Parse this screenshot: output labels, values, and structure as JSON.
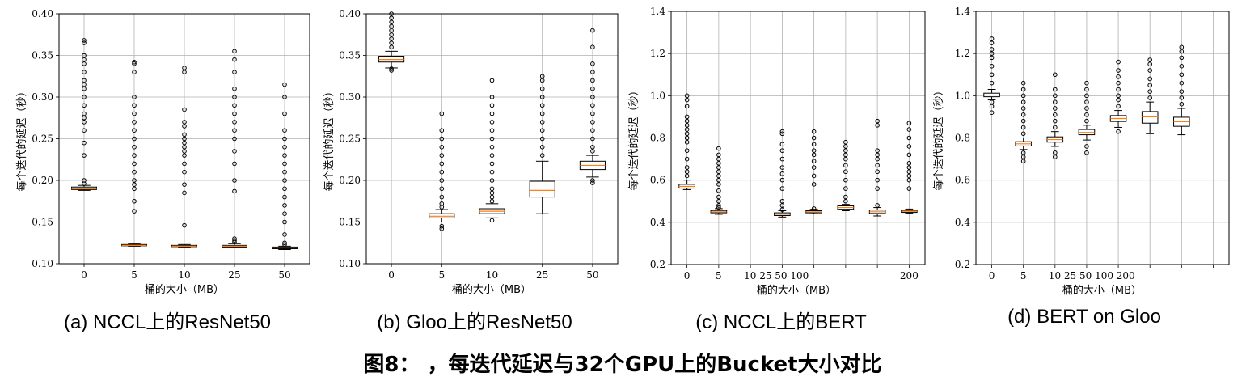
{
  "figure_caption": "图8： ，每迭代延迟与32个GPU上的Bucket大小对比",
  "chart_data": [
    {
      "type": "box",
      "caption": "(a) NCCL上的ResNet50",
      "xlabel": "桶的大小（MB）",
      "ylabel": "每个迭代的延迟（秒）",
      "ylim": [
        0.1,
        0.4
      ],
      "yticks": [
        "0.10",
        "0.15",
        "0.20",
        "0.25",
        "0.30",
        "0.35",
        "0.40"
      ],
      "grid": true,
      "categories": [
        "0",
        "5",
        "10",
        "25",
        "50"
      ],
      "boxes": [
        {
          "min": 0.188,
          "q1": 0.189,
          "median": 0.19,
          "q3": 0.192,
          "max": 0.194,
          "fliers": [
            0.196,
            0.2,
            0.23,
            0.245,
            0.26,
            0.27,
            0.275,
            0.28,
            0.29,
            0.3,
            0.31,
            0.315,
            0.32,
            0.33,
            0.34,
            0.345,
            0.35,
            0.365,
            0.368
          ]
        },
        {
          "min": 0.121,
          "q1": 0.1215,
          "median": 0.122,
          "q3": 0.123,
          "max": 0.124,
          "fliers": [
            0.163,
            0.175,
            0.19,
            0.195,
            0.2,
            0.21,
            0.22,
            0.23,
            0.24,
            0.25,
            0.26,
            0.27,
            0.28,
            0.29,
            0.3,
            0.33,
            0.34,
            0.342
          ]
        },
        {
          "min": 0.12,
          "q1": 0.1205,
          "median": 0.121,
          "q3": 0.122,
          "max": 0.123,
          "fliers": [
            0.146,
            0.185,
            0.195,
            0.21,
            0.22,
            0.23,
            0.235,
            0.24,
            0.245,
            0.25,
            0.255,
            0.265,
            0.27,
            0.285,
            0.33,
            0.335
          ]
        },
        {
          "min": 0.119,
          "q1": 0.12,
          "median": 0.121,
          "q3": 0.122,
          "max": 0.124,
          "fliers": [
            0.126,
            0.128,
            0.13,
            0.187,
            0.2,
            0.22,
            0.235,
            0.25,
            0.26,
            0.27,
            0.28,
            0.29,
            0.3,
            0.31,
            0.33,
            0.345,
            0.355
          ]
        },
        {
          "min": 0.117,
          "q1": 0.118,
          "median": 0.119,
          "q3": 0.12,
          "max": 0.121,
          "fliers": [
            0.123,
            0.125,
            0.135,
            0.15,
            0.16,
            0.17,
            0.18,
            0.19,
            0.2,
            0.21,
            0.22,
            0.23,
            0.24,
            0.25,
            0.26,
            0.28,
            0.3,
            0.315
          ]
        }
      ]
    },
    {
      "type": "box",
      "caption": "(b) Gloo上的ResNet50",
      "xlabel": "桶的大小（MB）",
      "ylabel": "每个迭代的延迟（秒）",
      "ylim": [
        0.1,
        0.4
      ],
      "yticks": [
        "0.10",
        "0.15",
        "0.20",
        "0.25",
        "0.30",
        "0.35",
        "0.40"
      ],
      "grid": true,
      "categories": [
        "0",
        "5",
        "10",
        "25",
        "50"
      ],
      "boxes": [
        {
          "min": 0.335,
          "q1": 0.342,
          "median": 0.345,
          "q3": 0.349,
          "max": 0.355,
          "fliers": [
            0.332,
            0.334,
            0.36,
            0.365,
            0.37,
            0.375,
            0.38,
            0.385,
            0.39,
            0.395,
            0.4
          ]
        },
        {
          "min": 0.15,
          "q1": 0.155,
          "median": 0.157,
          "q3": 0.16,
          "max": 0.165,
          "fliers": [
            0.142,
            0.145,
            0.168,
            0.172,
            0.18,
            0.19,
            0.2,
            0.21,
            0.22,
            0.23,
            0.24,
            0.25,
            0.26,
            0.28
          ]
        },
        {
          "min": 0.155,
          "q1": 0.16,
          "median": 0.163,
          "q3": 0.166,
          "max": 0.172,
          "fliers": [
            0.152,
            0.175,
            0.18,
            0.185,
            0.19,
            0.2,
            0.21,
            0.22,
            0.23,
            0.24,
            0.25,
            0.26,
            0.27,
            0.28,
            0.29,
            0.3,
            0.32
          ]
        },
        {
          "min": 0.16,
          "q1": 0.18,
          "median": 0.188,
          "q3": 0.199,
          "max": 0.223,
          "fliers": [
            0.23,
            0.24,
            0.25,
            0.26,
            0.27,
            0.28,
            0.29,
            0.3,
            0.31,
            0.32,
            0.325
          ]
        },
        {
          "min": 0.204,
          "q1": 0.213,
          "median": 0.218,
          "q3": 0.223,
          "max": 0.23,
          "fliers": [
            0.197,
            0.2,
            0.235,
            0.24,
            0.25,
            0.26,
            0.27,
            0.28,
            0.29,
            0.3,
            0.31,
            0.32,
            0.33,
            0.34,
            0.36,
            0.38
          ]
        }
      ]
    },
    {
      "type": "box",
      "caption": "(c) NCCL上的BERT",
      "xlabel": "桶的大小（MB）",
      "ylabel": "每个迭代的延迟（秒）",
      "ylim": [
        0.2,
        1.4
      ],
      "yticks": [
        "0.2",
        "0.4",
        "0.6",
        "0.8",
        "1.0",
        "1.2",
        "1.4"
      ],
      "grid": true,
      "categories": [
        "0",
        "5",
        "10",
        "25",
        "50",
        "100",
        "",
        "200"
      ],
      "tick_text": [
        "0",
        "5",
        "10 25 50 100",
        "",
        "",
        "",
        "",
        "200"
      ],
      "boxes": [
        {
          "min": 0.555,
          "q1": 0.562,
          "median": 0.57,
          "q3": 0.58,
          "max": 0.6,
          "fliers": [
            0.62,
            0.64,
            0.66,
            0.7,
            0.74,
            0.78,
            0.8,
            0.82,
            0.84,
            0.86,
            0.88,
            0.9,
            0.95,
            0.98,
            1.0
          ]
        },
        {
          "min": 0.438,
          "q1": 0.445,
          "median": 0.45,
          "q3": 0.456,
          "max": 0.465,
          "fliers": [
            0.47,
            0.48,
            0.5,
            0.52,
            0.55,
            0.58,
            0.6,
            0.62,
            0.64,
            0.66,
            0.68,
            0.7,
            0.72,
            0.75
          ]
        },
        {
          "min": 0.425,
          "q1": 0.432,
          "median": 0.438,
          "q3": 0.445,
          "max": 0.455,
          "fliers": [
            0.46,
            0.48,
            0.5,
            0.56,
            0.6,
            0.63,
            0.66,
            0.7,
            0.74,
            0.77,
            0.82,
            0.83
          ]
        },
        {
          "min": 0.44,
          "q1": 0.445,
          "median": 0.45,
          "q3": 0.455,
          "max": 0.462,
          "fliers": [
            0.465,
            0.58,
            0.62,
            0.66,
            0.69,
            0.72,
            0.74,
            0.77,
            0.8,
            0.83
          ]
        },
        {
          "min": 0.455,
          "q1": 0.462,
          "median": 0.47,
          "q3": 0.478,
          "max": 0.485,
          "fliers": [
            0.5,
            0.52,
            0.56,
            0.6,
            0.64,
            0.67,
            0.7,
            0.72,
            0.74,
            0.76,
            0.78
          ]
        },
        {
          "min": 0.43,
          "q1": 0.442,
          "median": 0.45,
          "q3": 0.458,
          "max": 0.47,
          "fliers": [
            0.48,
            0.56,
            0.6,
            0.64,
            0.67,
            0.7,
            0.72,
            0.74,
            0.86,
            0.88
          ]
        },
        {
          "min": 0.443,
          "q1": 0.447,
          "median": 0.452,
          "q3": 0.457,
          "max": 0.463,
          "fliers": [
            0.56,
            0.6,
            0.62,
            0.64,
            0.66,
            0.68,
            0.72,
            0.76,
            0.8,
            0.84,
            0.87
          ]
        }
      ]
    },
    {
      "type": "box",
      "caption": "(d) BERT on Gloo",
      "xlabel": "桶的大小（MB）",
      "ylabel": "每个迭代的延迟（秒）",
      "ylim": [
        0.2,
        1.4
      ],
      "yticks": [
        "0.2",
        "0.4",
        "0.6",
        "0.8",
        "1.0",
        "1.2",
        "1.4"
      ],
      "grid": true,
      "categories": [
        "0",
        "5",
        "10",
        "25",
        "50",
        "100",
        "200",
        ""
      ],
      "tick_text": [
        "0",
        "5",
        "10 25 50 100 200",
        "",
        "",
        "",
        "",
        ""
      ],
      "boxes": [
        {
          "min": 0.98,
          "q1": 0.995,
          "median": 1.003,
          "q3": 1.012,
          "max": 1.03,
          "fliers": [
            0.92,
            0.95,
            0.97,
            1.06,
            1.1,
            1.14,
            1.18,
            1.2,
            1.22,
            1.25,
            1.27
          ]
        },
        {
          "min": 0.745,
          "q1": 0.762,
          "median": 0.772,
          "q3": 0.782,
          "max": 0.8,
          "fliers": [
            0.69,
            0.71,
            0.73,
            0.82,
            0.85,
            0.88,
            0.91,
            0.94,
            0.97,
            1.0,
            1.03,
            1.06
          ]
        },
        {
          "min": 0.76,
          "q1": 0.78,
          "median": 0.792,
          "q3": 0.805,
          "max": 0.83,
          "fliers": [
            0.71,
            0.73,
            0.85,
            0.88,
            0.91,
            0.94,
            0.97,
            1.0,
            1.03,
            1.1
          ]
        },
        {
          "min": 0.79,
          "q1": 0.815,
          "median": 0.826,
          "q3": 0.84,
          "max": 0.86,
          "fliers": [
            0.73,
            0.76,
            0.88,
            0.91,
            0.94,
            0.97,
            1.0,
            1.03,
            1.06
          ]
        },
        {
          "min": 0.85,
          "q1": 0.878,
          "median": 0.892,
          "q3": 0.906,
          "max": 0.93,
          "fliers": [
            0.83,
            0.95,
            0.98,
            1.0,
            1.03,
            1.06,
            1.09,
            1.12,
            1.16
          ]
        },
        {
          "min": 0.82,
          "q1": 0.87,
          "median": 0.9,
          "q3": 0.925,
          "max": 0.97,
          "fliers": [
            0.99,
            1.02,
            1.05,
            1.08,
            1.12,
            1.15,
            1.17
          ]
        },
        {
          "min": 0.815,
          "q1": 0.855,
          "median": 0.877,
          "q3": 0.898,
          "max": 0.94,
          "fliers": [
            0.96,
            0.99,
            1.02,
            1.06,
            1.1,
            1.14,
            1.18,
            1.21,
            1.23
          ]
        }
      ]
    }
  ]
}
